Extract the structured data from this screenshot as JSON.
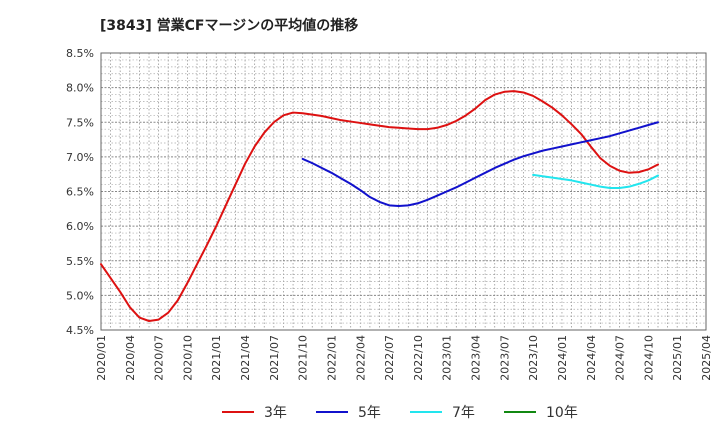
{
  "chart_data": {
    "type": "line",
    "title": "[3843]  営業CFマージンの平均値の推移",
    "xlabel": "",
    "ylabel": "",
    "ylim": [
      4.5,
      8.5
    ],
    "grid": true,
    "legend_placement": "bottom",
    "y_ticks": [
      "8.5%",
      "8.0%",
      "7.5%",
      "7.0%",
      "6.5%",
      "6.0%",
      "5.5%",
      "5.0%",
      "4.5%"
    ],
    "x_ticks": [
      "2020/01",
      "2020/04",
      "2020/07",
      "2020/10",
      "2021/01",
      "2021/04",
      "2021/07",
      "2021/10",
      "2022/01",
      "2022/04",
      "2022/07",
      "2022/10",
      "2023/01",
      "2023/04",
      "2023/07",
      "2023/10",
      "2024/01",
      "2024/04",
      "2024/07",
      "2024/10",
      "2025/01",
      "2025/04"
    ],
    "series": [
      {
        "name": "3年",
        "color": "#dd1111",
        "points": [
          [
            "2020/01",
            5.45
          ],
          [
            "2020/02",
            5.25
          ],
          [
            "2020/03",
            5.05
          ],
          [
            "2020/04",
            4.83
          ],
          [
            "2020/05",
            4.68
          ],
          [
            "2020/06",
            4.63
          ],
          [
            "2020/07",
            4.65
          ],
          [
            "2020/08",
            4.75
          ],
          [
            "2020/09",
            4.93
          ],
          [
            "2020/10",
            5.18
          ],
          [
            "2020/11",
            5.45
          ],
          [
            "2020/12",
            5.72
          ],
          [
            "2021/01",
            6.0
          ],
          [
            "2021/02",
            6.3
          ],
          [
            "2021/03",
            6.6
          ],
          [
            "2021/04",
            6.9
          ],
          [
            "2021/05",
            7.15
          ],
          [
            "2021/06",
            7.35
          ],
          [
            "2021/07",
            7.5
          ],
          [
            "2021/08",
            7.6
          ],
          [
            "2021/09",
            7.64
          ],
          [
            "2021/10",
            7.63
          ],
          [
            "2021/11",
            7.61
          ],
          [
            "2021/12",
            7.59
          ],
          [
            "2022/01",
            7.56
          ],
          [
            "2022/02",
            7.53
          ],
          [
            "2022/03",
            7.51
          ],
          [
            "2022/04",
            7.49
          ],
          [
            "2022/05",
            7.47
          ],
          [
            "2022/06",
            7.45
          ],
          [
            "2022/07",
            7.43
          ],
          [
            "2022/08",
            7.42
          ],
          [
            "2022/09",
            7.41
          ],
          [
            "2022/10",
            7.4
          ],
          [
            "2022/11",
            7.4
          ],
          [
            "2022/12",
            7.42
          ],
          [
            "2023/01",
            7.46
          ],
          [
            "2023/02",
            7.52
          ],
          [
            "2023/03",
            7.6
          ],
          [
            "2023/04",
            7.7
          ],
          [
            "2023/05",
            7.82
          ],
          [
            "2023/06",
            7.9
          ],
          [
            "2023/07",
            7.94
          ],
          [
            "2023/08",
            7.95
          ],
          [
            "2023/09",
            7.93
          ],
          [
            "2023/10",
            7.88
          ],
          [
            "2023/11",
            7.8
          ],
          [
            "2023/12",
            7.71
          ],
          [
            "2024/01",
            7.6
          ],
          [
            "2024/02",
            7.47
          ],
          [
            "2024/03",
            7.33
          ],
          [
            "2024/04",
            7.15
          ],
          [
            "2024/05",
            6.98
          ],
          [
            "2024/06",
            6.87
          ],
          [
            "2024/07",
            6.8
          ],
          [
            "2024/08",
            6.77
          ],
          [
            "2024/09",
            6.78
          ],
          [
            "2024/10",
            6.82
          ],
          [
            "2024/11",
            6.89
          ]
        ]
      },
      {
        "name": "5年",
        "color": "#1111cc",
        "points": [
          [
            "2021/10",
            6.97
          ],
          [
            "2021/11",
            6.91
          ],
          [
            "2021/12",
            6.84
          ],
          [
            "2022/01",
            6.77
          ],
          [
            "2022/02",
            6.69
          ],
          [
            "2022/03",
            6.61
          ],
          [
            "2022/04",
            6.52
          ],
          [
            "2022/05",
            6.42
          ],
          [
            "2022/06",
            6.35
          ],
          [
            "2022/07",
            6.3
          ],
          [
            "2022/08",
            6.29
          ],
          [
            "2022/09",
            6.3
          ],
          [
            "2022/10",
            6.33
          ],
          [
            "2022/11",
            6.38
          ],
          [
            "2022/12",
            6.44
          ],
          [
            "2023/01",
            6.5
          ],
          [
            "2023/02",
            6.56
          ],
          [
            "2023/03",
            6.63
          ],
          [
            "2023/04",
            6.7
          ],
          [
            "2023/05",
            6.77
          ],
          [
            "2023/06",
            6.84
          ],
          [
            "2023/07",
            6.9
          ],
          [
            "2023/08",
            6.96
          ],
          [
            "2023/09",
            7.01
          ],
          [
            "2023/10",
            7.05
          ],
          [
            "2023/11",
            7.09
          ],
          [
            "2023/12",
            7.12
          ],
          [
            "2024/01",
            7.15
          ],
          [
            "2024/02",
            7.18
          ],
          [
            "2024/03",
            7.21
          ],
          [
            "2024/04",
            7.24
          ],
          [
            "2024/05",
            7.27
          ],
          [
            "2024/06",
            7.3
          ],
          [
            "2024/07",
            7.34
          ],
          [
            "2024/08",
            7.38
          ],
          [
            "2024/09",
            7.42
          ],
          [
            "2024/10",
            7.46
          ],
          [
            "2024/11",
            7.5
          ]
        ]
      },
      {
        "name": "7年",
        "color": "#22e5ee",
        "points": [
          [
            "2023/10",
            6.74
          ],
          [
            "2023/11",
            6.72
          ],
          [
            "2023/12",
            6.7
          ],
          [
            "2024/01",
            6.68
          ],
          [
            "2024/02",
            6.66
          ],
          [
            "2024/03",
            6.63
          ],
          [
            "2024/04",
            6.6
          ],
          [
            "2024/05",
            6.57
          ],
          [
            "2024/06",
            6.55
          ],
          [
            "2024/07",
            6.55
          ],
          [
            "2024/08",
            6.57
          ],
          [
            "2024/09",
            6.61
          ],
          [
            "2024/10",
            6.66
          ],
          [
            "2024/11",
            6.73
          ]
        ]
      },
      {
        "name": "10年",
        "color": "#118811",
        "points": []
      }
    ]
  }
}
